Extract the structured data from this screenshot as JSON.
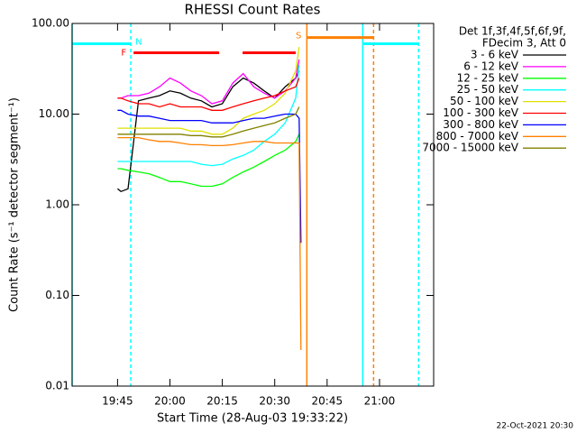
{
  "chart_data": {
    "type": "line",
    "title": "RHESSI Count Rates",
    "x_label": "Start Time (28-Aug-03 19:33:22)",
    "y_label": "Count Rate (s⁻¹ detector segment⁻¹)",
    "legend_title": [
      "Det 1f,3f,4f,5f,6f,9f,",
      "FDecim 3, Att 0"
    ],
    "footer": "22-Oct-2021 20:30",
    "log_y": true,
    "xlim": [
      1172,
      1275.5
    ],
    "ylim": [
      0.01,
      100
    ],
    "xticks": [
      {
        "value": 1185,
        "label": "19:45"
      },
      {
        "value": 1200,
        "label": "20:00"
      },
      {
        "value": 1215,
        "label": "20:15"
      },
      {
        "value": 1230,
        "label": "20:30"
      },
      {
        "value": 1245,
        "label": "20:45"
      },
      {
        "value": 1260,
        "label": "21:00"
      }
    ],
    "yticks": [
      {
        "value": 0.01,
        "label": "0.01"
      },
      {
        "value": 0.1,
        "label": "0.10"
      },
      {
        "value": 1,
        "label": "1.00"
      },
      {
        "value": 10,
        "label": "10.00"
      },
      {
        "value": 100,
        "label": "100.00"
      }
    ],
    "x": [
      1185,
      1186,
      1188,
      1191,
      1194,
      1197,
      1200,
      1203,
      1206,
      1209,
      1212,
      1215,
      1218,
      1221,
      1224,
      1227,
      1230,
      1233,
      1236,
      1237,
      1237.5
    ],
    "series": [
      {
        "name": "3 - 6 keV",
        "color": "#000000",
        "values": [
          1.5,
          1.4,
          1.5,
          14,
          15,
          16,
          18,
          17,
          15,
          14,
          12,
          13,
          20,
          25,
          22,
          18,
          15,
          20,
          25,
          30,
          null
        ]
      },
      {
        "name": "6 - 12 keV",
        "color": "#ff00ff",
        "values": [
          15,
          15,
          16,
          16,
          17,
          20,
          25,
          22,
          18,
          16,
          13,
          14,
          22,
          28,
          20,
          17,
          15,
          18,
          25,
          40,
          null
        ]
      },
      {
        "name": "12 - 25 keV",
        "color": "#00ff00",
        "values": [
          2.5,
          2.5,
          2.4,
          2.3,
          2.2,
          2,
          1.8,
          1.8,
          1.7,
          1.6,
          1.6,
          1.7,
          2,
          2.3,
          2.6,
          3,
          3.5,
          4,
          5,
          6,
          null
        ]
      },
      {
        "name": "25 - 50 keV",
        "color": "#00ffff",
        "values": [
          3,
          3,
          3,
          3,
          3,
          3,
          3,
          3,
          3,
          2.8,
          2.7,
          2.8,
          3.2,
          3.5,
          4,
          5,
          6,
          8,
          15,
          35,
          null
        ]
      },
      {
        "name": "50 - 100 keV",
        "color": "#e0e000",
        "values": [
          7,
          7,
          7,
          7,
          7,
          7,
          7,
          7,
          6.5,
          6.5,
          6,
          6,
          7,
          9,
          10,
          11,
          13,
          17,
          30,
          55,
          null
        ]
      },
      {
        "name": "100 - 300 keV",
        "color": "#ff0000",
        "values": [
          15,
          15,
          14,
          13,
          13,
          12,
          13,
          12,
          12,
          12,
          11,
          11,
          12,
          13,
          14,
          15,
          16,
          18,
          20,
          25,
          null
        ]
      },
      {
        "name": "300 - 800 keV",
        "color": "#0000ff",
        "values": [
          11,
          11,
          10,
          9.5,
          9.5,
          9,
          8.5,
          8.5,
          8.5,
          8.5,
          8,
          8,
          8,
          8.5,
          9,
          9,
          9.5,
          10,
          10,
          9,
          0.38
        ]
      },
      {
        "name": "800 - 7000 keV",
        "color": "#ff8000",
        "values": [
          5.5,
          5.5,
          5.5,
          5.5,
          5.2,
          5,
          5,
          4.8,
          4.6,
          4.6,
          4.5,
          4.5,
          4.6,
          4.8,
          5,
          5,
          4.8,
          4.8,
          4.8,
          4.8,
          0.025
        ]
      },
      {
        "name": "7000 - 15000 keV",
        "color": "#808000",
        "values": [
          6,
          6,
          6,
          6,
          6,
          6,
          6,
          6,
          5.8,
          5.8,
          5.6,
          5.6,
          6,
          6.5,
          7,
          7.5,
          8,
          9,
          10,
          12,
          null
        ]
      }
    ],
    "flags": [
      {
        "label": "F",
        "color": "#ff0000",
        "y": 47.5,
        "segments": [
          [
            1189.6,
            1214.1
          ],
          [
            1220.8,
            1236
          ]
        ]
      },
      {
        "label": "N",
        "color": "#00ffff",
        "y": 59.7,
        "segments": [
          [
            1172,
            1188.8
          ],
          [
            1255.2,
            1271.2
          ]
        ]
      },
      {
        "label": "S",
        "color": "#ff8000",
        "y": 70,
        "segments": [
          [
            1239.2,
            1258.3
          ]
        ]
      }
    ],
    "vlines": [
      {
        "x": 1172,
        "color": "#00ffff",
        "dashed": false
      },
      {
        "x": 1188.8,
        "color": "#00ffff",
        "dashed": true
      },
      {
        "x": 1239.2,
        "color": "#ff8000",
        "dashed": false
      },
      {
        "x": 1255.2,
        "color": "#00ffff",
        "dashed": false
      },
      {
        "x": 1258.3,
        "color": "#ff8000",
        "dashed": true
      },
      {
        "x": 1271.2,
        "color": "#00ffff",
        "dashed": true
      }
    ]
  }
}
